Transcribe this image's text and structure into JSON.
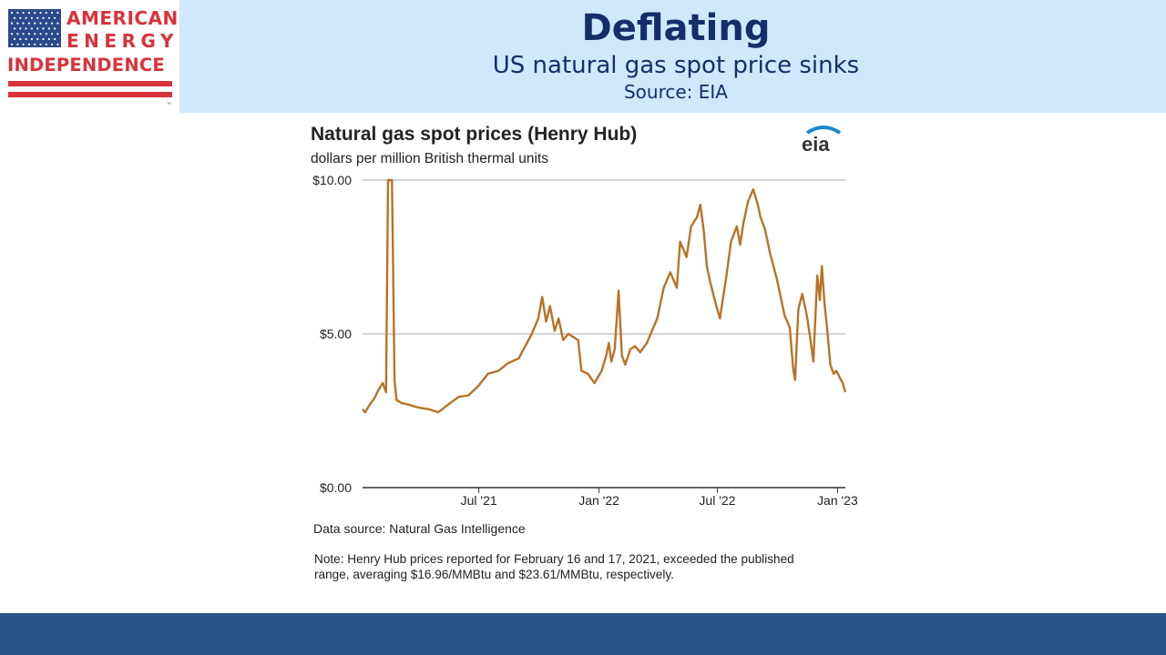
{
  "logo": {
    "line1": "AMERICAN",
    "line2": "ENERGY",
    "line3": "INDEPENDENCE",
    "tm": "™"
  },
  "header": {
    "title": "Deflating",
    "subtitle": "US natural gas spot price sinks",
    "source": "Source: EIA"
  },
  "colors": {
    "header_band": "#cfe8fb",
    "title_text": "#142e6b",
    "series": "#b87327",
    "footer_band": "#29568a",
    "logo_red": "#d9323b",
    "logo_blue": "#2b4a8c"
  },
  "chart_data": {
    "type": "line",
    "title": "Natural gas spot prices (Henry Hub)",
    "subtitle": "dollars per million British thermal units",
    "brand": "eia",
    "ylim": [
      0,
      10
    ],
    "xlim": [
      "2021-01-04",
      "2023-01-13"
    ],
    "y_ticks": [
      {
        "value": 0,
        "label": "$0.00"
      },
      {
        "value": 5,
        "label": "$5.00"
      },
      {
        "value": 10,
        "label": "$10.00"
      }
    ],
    "x_ticks": [
      {
        "date": "2021-07-01",
        "label": "Jul '21"
      },
      {
        "date": "2022-01-01",
        "label": "Jan '22"
      },
      {
        "date": "2022-07-01",
        "label": "Jul '22"
      },
      {
        "date": "2023-01-01",
        "label": "Jan '23"
      }
    ],
    "gridlines": "horizontal at y ticks",
    "series": [
      {
        "points": [
          [
            "2021-01-04",
            2.55
          ],
          [
            "2021-01-08",
            2.45
          ],
          [
            "2021-01-15",
            2.7
          ],
          [
            "2021-01-22",
            2.9
          ],
          [
            "2021-01-29",
            3.2
          ],
          [
            "2021-02-04",
            3.4
          ],
          [
            "2021-02-09",
            3.1
          ],
          [
            "2021-02-12",
            10
          ],
          [
            "2021-02-18",
            10
          ],
          [
            "2021-02-22",
            3.5
          ],
          [
            "2021-02-25",
            2.85
          ],
          [
            "2021-03-05",
            2.75
          ],
          [
            "2021-03-15",
            2.7
          ],
          [
            "2021-03-31",
            2.6
          ],
          [
            "2021-04-15",
            2.55
          ],
          [
            "2021-04-30",
            2.45
          ],
          [
            "2021-05-15",
            2.7
          ],
          [
            "2021-05-31",
            2.95
          ],
          [
            "2021-06-15",
            3.0
          ],
          [
            "2021-06-30",
            3.3
          ],
          [
            "2021-07-15",
            3.7
          ],
          [
            "2021-07-31",
            3.8
          ],
          [
            "2021-08-15",
            4.05
          ],
          [
            "2021-08-31",
            4.2
          ],
          [
            "2021-09-10",
            4.6
          ],
          [
            "2021-09-20",
            5.0
          ],
          [
            "2021-09-30",
            5.5
          ],
          [
            "2021-10-06",
            6.2
          ],
          [
            "2021-10-12",
            5.4
          ],
          [
            "2021-10-18",
            5.9
          ],
          [
            "2021-10-25",
            5.1
          ],
          [
            "2021-10-31",
            5.5
          ],
          [
            "2021-11-07",
            4.8
          ],
          [
            "2021-11-15",
            5.0
          ],
          [
            "2021-11-30",
            4.8
          ],
          [
            "2021-12-05",
            3.8
          ],
          [
            "2021-12-15",
            3.7
          ],
          [
            "2021-12-25",
            3.4
          ],
          [
            "2022-01-05",
            3.8
          ],
          [
            "2022-01-12",
            4.3
          ],
          [
            "2022-01-16",
            4.7
          ],
          [
            "2022-01-20",
            4.1
          ],
          [
            "2022-01-25",
            4.5
          ],
          [
            "2022-01-31",
            6.4
          ],
          [
            "2022-02-05",
            4.3
          ],
          [
            "2022-02-10",
            4.0
          ],
          [
            "2022-02-18",
            4.5
          ],
          [
            "2022-02-25",
            4.6
          ],
          [
            "2022-03-05",
            4.4
          ],
          [
            "2022-03-15",
            4.7
          ],
          [
            "2022-03-31",
            5.5
          ],
          [
            "2022-04-10",
            6.5
          ],
          [
            "2022-04-20",
            7.0
          ],
          [
            "2022-04-30",
            6.5
          ],
          [
            "2022-05-05",
            8.0
          ],
          [
            "2022-05-15",
            7.5
          ],
          [
            "2022-05-22",
            8.5
          ],
          [
            "2022-05-31",
            8.8
          ],
          [
            "2022-06-05",
            9.2
          ],
          [
            "2022-06-10",
            8.4
          ],
          [
            "2022-06-15",
            7.2
          ],
          [
            "2022-06-20",
            6.7
          ],
          [
            "2022-06-27",
            6.1
          ],
          [
            "2022-07-05",
            5.5
          ],
          [
            "2022-07-10",
            6.2
          ],
          [
            "2022-07-15",
            6.9
          ],
          [
            "2022-07-22",
            8.0
          ],
          [
            "2022-07-31",
            8.5
          ],
          [
            "2022-08-05",
            7.9
          ],
          [
            "2022-08-10",
            8.6
          ],
          [
            "2022-08-17",
            9.3
          ],
          [
            "2022-08-25",
            9.7
          ],
          [
            "2022-09-01",
            9.2
          ],
          [
            "2022-09-05",
            8.8
          ],
          [
            "2022-09-12",
            8.4
          ],
          [
            "2022-09-20",
            7.6
          ],
          [
            "2022-09-30",
            6.8
          ],
          [
            "2022-10-05",
            6.3
          ],
          [
            "2022-10-12",
            5.6
          ],
          [
            "2022-10-20",
            5.2
          ],
          [
            "2022-10-25",
            3.9
          ],
          [
            "2022-10-28",
            3.5
          ],
          [
            "2022-11-02",
            5.8
          ],
          [
            "2022-11-08",
            6.3
          ],
          [
            "2022-11-15",
            5.6
          ],
          [
            "2022-11-20",
            4.9
          ],
          [
            "2022-11-25",
            4.1
          ],
          [
            "2022-12-01",
            6.9
          ],
          [
            "2022-12-05",
            6.1
          ],
          [
            "2022-12-08",
            7.2
          ],
          [
            "2022-12-12",
            6.0
          ],
          [
            "2022-12-16",
            5.2
          ],
          [
            "2022-12-21",
            4.0
          ],
          [
            "2022-12-26",
            3.7
          ],
          [
            "2022-12-30",
            3.8
          ],
          [
            "2023-01-04",
            3.6
          ],
          [
            "2023-01-09",
            3.4
          ],
          [
            "2023-01-13",
            3.1
          ]
        ]
      }
    ]
  },
  "notes": {
    "data_source": "Data source: Natural Gas Intelligence",
    "note": "Note: Henry Hub prices reported for February 16 and 17, 2021, exceeded the published range, averaging $16.96/MMBtu and $23.61/MMBtu, respectively."
  }
}
